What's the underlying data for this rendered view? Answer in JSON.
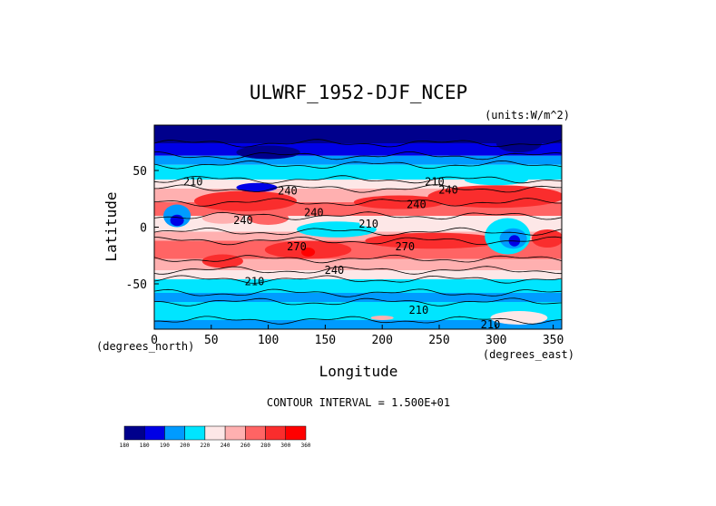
{
  "chart_data": {
    "type": "heatmap",
    "title": "ULWRF_1952-DJF_NCEP",
    "units": "(units:W/m^2)",
    "xlabel": "Longitude",
    "ylabel": "Latitude",
    "x_unit_note": "(degrees_east)",
    "y_unit_note": "(degrees_north)",
    "xlim": [
      0,
      357.5
    ],
    "ylim": [
      -90,
      90
    ],
    "x_ticks": [
      {
        "value": 0,
        "label": "0"
      },
      {
        "value": 50,
        "label": "50"
      },
      {
        "value": 100,
        "label": "100"
      },
      {
        "value": 150,
        "label": "150"
      },
      {
        "value": 200,
        "label": "200"
      },
      {
        "value": 250,
        "label": "250"
      },
      {
        "value": 300,
        "label": "300"
      },
      {
        "value": 350,
        "label": "350"
      }
    ],
    "y_ticks": [
      {
        "value": 50,
        "label": "50"
      },
      {
        "value": 0,
        "label": "0"
      },
      {
        "value": -50,
        "label": "-50"
      }
    ],
    "contour_interval_text": "CONTOUR INTERVAL = 1.500E+01",
    "contour_labels": [
      {
        "lon": 34,
        "lat": 40,
        "text": "210"
      },
      {
        "lon": 117,
        "lat": 32,
        "text": "240"
      },
      {
        "lon": 78,
        "lat": 6,
        "text": "240"
      },
      {
        "lon": 140,
        "lat": 13,
        "text": "240"
      },
      {
        "lon": 188,
        "lat": 3,
        "text": "210"
      },
      {
        "lon": 230,
        "lat": 20,
        "text": "240"
      },
      {
        "lon": 258,
        "lat": 33,
        "text": "240"
      },
      {
        "lon": 220,
        "lat": -17,
        "text": "270"
      },
      {
        "lon": 125,
        "lat": -17,
        "text": "270"
      },
      {
        "lon": 158,
        "lat": -38,
        "text": "240"
      },
      {
        "lon": 88,
        "lat": -48,
        "text": "210"
      },
      {
        "lon": 232,
        "lat": -73,
        "text": "210"
      },
      {
        "lon": 295,
        "lat": -86,
        "text": "210"
      },
      {
        "lon": 246,
        "lat": 40,
        "text": "210"
      }
    ],
    "colorbar": {
      "levels": [
        "180",
        "180",
        "190",
        "200",
        "220",
        "240",
        "260",
        "280",
        "300",
        "360"
      ],
      "colors": [
        "#00008c",
        "#0000e6",
        "#009bff",
        "#00e5ff",
        "#fde7e7",
        "#ffb0b0",
        "#ff6464",
        "#fa2d2d",
        "#ff0000"
      ]
    },
    "field_summary": "Outgoing longwave radiation at the top of atmosphere, Dec-Feb 1952; low values (blue) at high latitudes and over tropical convective regions (Africa, Amazon, Maritime Continent), high values (red) over subtropical deserts and oceans."
  }
}
